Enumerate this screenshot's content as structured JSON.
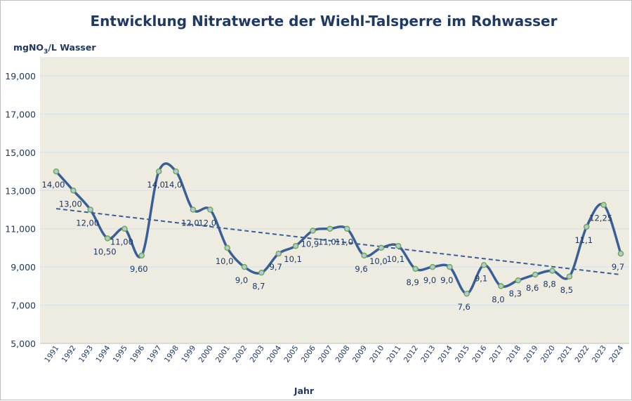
{
  "chart_data": {
    "type": "line",
    "title": "Entwicklung Nitratwerte der Wiehl-Talsperre im Rohwasser",
    "ylabel_prefix": "mgNO",
    "ylabel_sub": "3",
    "ylabel_suffix": "/L Wasser",
    "xlabel": "Jahr",
    "ylim": [
      5000,
      19000
    ],
    "yticks": [
      "5,000",
      "7,000",
      "9,000",
      "11,000",
      "13,000",
      "15,000",
      "17,000",
      "19,000"
    ],
    "ytick_values": [
      5000,
      7000,
      9000,
      11000,
      13000,
      15000,
      17000,
      19000
    ],
    "grid": true,
    "smooth": true,
    "trendline": {
      "type": "linear",
      "style": "dashed"
    },
    "colors": {
      "line": "#3A5F98",
      "marker_fill": "#B4C7E7",
      "marker_edge": "#70AD47",
      "plot_bg": "#EEEBE0",
      "grid": "#CFE2F3",
      "text": "#1F3864"
    },
    "categories": [
      "1991",
      "1992",
      "1993",
      "1994",
      "1995",
      "1996",
      "1997",
      "1998",
      "1999",
      "2000",
      "2001",
      "2002",
      "2003",
      "2004",
      "2005",
      "2006",
      "2007",
      "2008",
      "2009",
      "2010",
      "2011",
      "2012",
      "2013",
      "2014",
      "2015",
      "2016",
      "2017",
      "2018",
      "2019",
      "2020",
      "2021",
      "2022",
      "2023",
      "2024"
    ],
    "values": [
      14000,
      13000,
      12000,
      10500,
      11000,
      9600,
      14000,
      14000,
      12000,
      12000,
      10000,
      9000,
      8700,
      9700,
      10100,
      10900,
      11000,
      11000,
      9600,
      10000,
      10100,
      8900,
      9000,
      9000,
      7600,
      9100,
      8000,
      8300,
      8600,
      8800,
      8500,
      11100,
      12250,
      9700
    ],
    "data_labels": [
      "14,00",
      "13,00",
      "12,00",
      "10,50",
      "11,00",
      "9,60",
      "14,0",
      "14,0",
      "12,0",
      "12,0",
      "10,0",
      "9,0",
      "8,7",
      "9,7",
      "10,1",
      "10,9",
      "11,0",
      "11,0",
      "9,6",
      "10,0",
      "10,1",
      "8,9",
      "9,0",
      "9,0",
      "7,6",
      "9,1",
      "8,0",
      "8,3",
      "8,6",
      "8,8",
      "8,5",
      "11,1",
      "12,25",
      "9,7"
    ]
  }
}
